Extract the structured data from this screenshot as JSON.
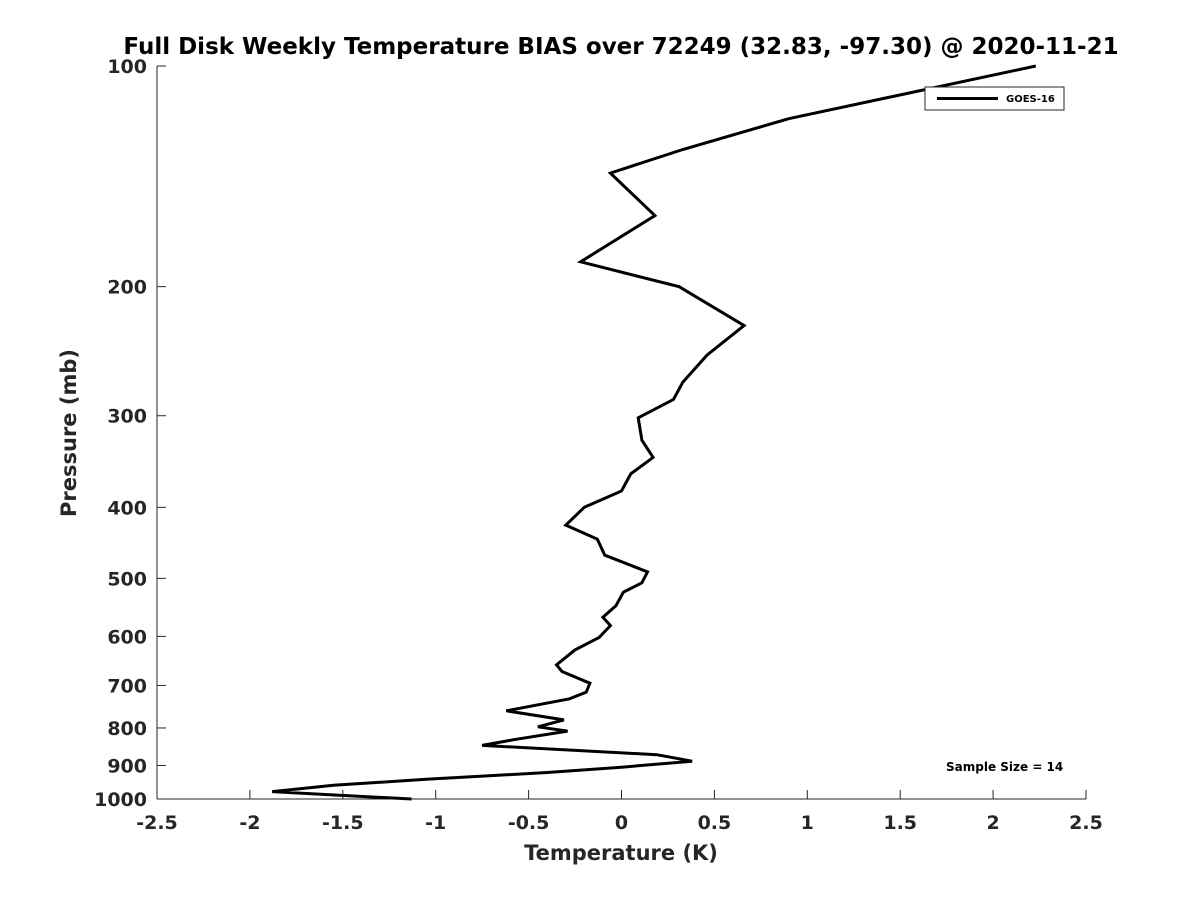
{
  "chart_data": {
    "type": "line",
    "title": "Full Disk Weekly Temperature BIAS over 72249 (32.83, -97.30) @ 2020-11-21",
    "xlabel": "Temperature (K)",
    "ylabel": "Pressure (mb)",
    "xlim": [
      -2.5,
      2.5
    ],
    "ylim": [
      100,
      1000
    ],
    "y_scale": "log",
    "y_reversed": true,
    "x_ticks": [
      -2.5,
      -2,
      -1.5,
      -1,
      -0.5,
      0,
      0.5,
      1,
      1.5,
      2,
      2.5
    ],
    "x_tick_labels": [
      "-2.5",
      "-2",
      "-1.5",
      "-1",
      "-0.5",
      "0",
      "0.5",
      "1",
      "1.5",
      "2",
      "2.5"
    ],
    "y_ticks": [
      100,
      200,
      300,
      400,
      500,
      600,
      700,
      800,
      900,
      1000
    ],
    "y_tick_labels": [
      "100",
      "200",
      "300",
      "400",
      "500",
      "600",
      "700",
      "800",
      "900",
      "1000"
    ],
    "grid": false,
    "legend_position": "top-right",
    "series": [
      {
        "name": "GOES-16",
        "color": "#000000",
        "points": [
          {
            "x": 2.23,
            "p": 100
          },
          {
            "x": 0.9,
            "p": 118
          },
          {
            "x": 0.33,
            "p": 130
          },
          {
            "x": -0.06,
            "p": 140
          },
          {
            "x": 0.18,
            "p": 160
          },
          {
            "x": -0.22,
            "p": 185
          },
          {
            "x": 0.31,
            "p": 200
          },
          {
            "x": 0.66,
            "p": 226
          },
          {
            "x": 0.46,
            "p": 248
          },
          {
            "x": 0.33,
            "p": 270
          },
          {
            "x": 0.28,
            "p": 285
          },
          {
            "x": 0.09,
            "p": 302
          },
          {
            "x": 0.11,
            "p": 324
          },
          {
            "x": 0.17,
            "p": 342
          },
          {
            "x": 0.05,
            "p": 360
          },
          {
            "x": 0.0,
            "p": 380
          },
          {
            "x": -0.2,
            "p": 400
          },
          {
            "x": -0.3,
            "p": 423
          },
          {
            "x": -0.13,
            "p": 442
          },
          {
            "x": -0.09,
            "p": 465
          },
          {
            "x": 0.14,
            "p": 490
          },
          {
            "x": 0.11,
            "p": 507
          },
          {
            "x": 0.01,
            "p": 522
          },
          {
            "x": -0.03,
            "p": 545
          },
          {
            "x": -0.1,
            "p": 565
          },
          {
            "x": -0.06,
            "p": 580
          },
          {
            "x": -0.12,
            "p": 602
          },
          {
            "x": -0.25,
            "p": 626
          },
          {
            "x": -0.35,
            "p": 656
          },
          {
            "x": -0.32,
            "p": 670
          },
          {
            "x": -0.17,
            "p": 695
          },
          {
            "x": -0.19,
            "p": 715
          },
          {
            "x": -0.28,
            "p": 730
          },
          {
            "x": -0.62,
            "p": 758
          },
          {
            "x": -0.31,
            "p": 780
          },
          {
            "x": -0.45,
            "p": 797
          },
          {
            "x": -0.29,
            "p": 808
          },
          {
            "x": -0.58,
            "p": 830
          },
          {
            "x": -0.75,
            "p": 845
          },
          {
            "x": 0.19,
            "p": 870
          },
          {
            "x": 0.38,
            "p": 888
          },
          {
            "x": 0.0,
            "p": 905
          },
          {
            "x": -0.4,
            "p": 920
          },
          {
            "x": -1.05,
            "p": 940
          },
          {
            "x": -1.55,
            "p": 958
          },
          {
            "x": -1.88,
            "p": 977
          },
          {
            "x": -1.52,
            "p": 988
          },
          {
            "x": -1.13,
            "p": 1000
          }
        ]
      }
    ],
    "annotation": "Sample Size = 14"
  }
}
